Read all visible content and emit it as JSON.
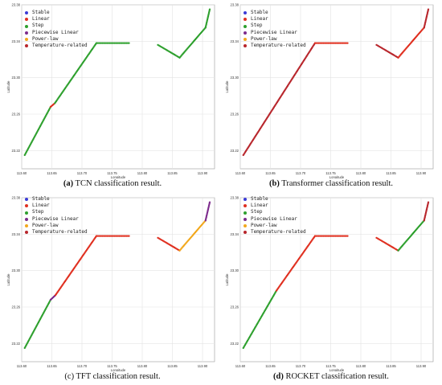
{
  "legend_colors": {
    "Stable": "#3b3bd6",
    "Linear": "#e03020",
    "Step": "#2ea02e",
    "Piecewise Linear": "#7d2b8c",
    "Power-law": "#f2a81d",
    "Temperature-related": "#b8262c"
  },
  "panels": [
    {
      "caption_label": "(a)",
      "caption_text": " TCN classification result.",
      "caption_bold": true
    },
    {
      "caption_label": "(b)",
      "caption_text": " Transformer classification result.",
      "caption_bold": true
    },
    {
      "caption_label": "(c)",
      "caption_text": " TFT classification result.",
      "caption_bold": false
    },
    {
      "caption_label": "(d)",
      "caption_text": " ROCKET classification result.",
      "caption_bold": true
    }
  ],
  "chart_data": [
    {
      "type": "scatter",
      "xlabel": "Longitude",
      "ylabel": "Latitude",
      "xlim": [
        113.6,
        113.92
      ],
      "ylim": [
        23.2,
        23.38
      ],
      "x_ticks": [
        "113.60",
        "113.65",
        "113.70",
        "113.75",
        "113.80",
        "113.85",
        "113.90"
      ],
      "y_ticks": [
        "23.22",
        "23.26",
        "23.30",
        "23.34",
        "23.38"
      ],
      "grid": true,
      "legend_position": "top-left",
      "legend": [
        "Stable",
        "Linear",
        "Step",
        "Piecewise Linear",
        "Power-law",
        "Temperature-related"
      ],
      "segments": [
        {
          "class": "Step",
          "from": [
            113.605,
            23.215
          ],
          "to": [
            113.648,
            23.268
          ]
        },
        {
          "class": "Linear",
          "from": [
            113.648,
            23.268
          ],
          "to": [
            113.655,
            23.272
          ]
        },
        {
          "class": "Step",
          "from": [
            113.655,
            23.272
          ],
          "to": [
            113.724,
            23.338
          ]
        },
        {
          "class": "Step",
          "from": [
            113.724,
            23.338
          ],
          "to": [
            113.778,
            23.338
          ]
        },
        {
          "class": "Step",
          "from": [
            113.826,
            23.336
          ],
          "to": [
            113.862,
            23.322
          ]
        },
        {
          "class": "Step",
          "from": [
            113.862,
            23.322
          ],
          "to": [
            113.905,
            23.355
          ]
        },
        {
          "class": "Step",
          "from": [
            113.905,
            23.355
          ],
          "to": [
            113.912,
            23.375
          ]
        }
      ]
    },
    {
      "type": "scatter",
      "xlabel": "Longitude",
      "ylabel": "Latitude",
      "xlim": [
        113.6,
        113.92
      ],
      "ylim": [
        23.2,
        23.38
      ],
      "x_ticks": [
        "113.60",
        "113.65",
        "113.70",
        "113.75",
        "113.80",
        "113.85",
        "113.90"
      ],
      "y_ticks": [
        "23.22",
        "23.26",
        "23.30",
        "23.34",
        "23.38"
      ],
      "grid": true,
      "legend_position": "top-left",
      "legend": [
        "Stable",
        "Linear",
        "Step",
        "Piecewise Linear",
        "Power-law",
        "Temperature-related"
      ],
      "segments": [
        {
          "class": "Temperature-related",
          "from": [
            113.605,
            23.215
          ],
          "to": [
            113.724,
            23.338
          ]
        },
        {
          "class": "Linear",
          "from": [
            113.724,
            23.338
          ],
          "to": [
            113.778,
            23.338
          ]
        },
        {
          "class": "Temperature-related",
          "from": [
            113.826,
            23.336
          ],
          "to": [
            113.862,
            23.322
          ]
        },
        {
          "class": "Linear",
          "from": [
            113.862,
            23.322
          ],
          "to": [
            113.905,
            23.355
          ]
        },
        {
          "class": "Temperature-related",
          "from": [
            113.905,
            23.355
          ],
          "to": [
            113.912,
            23.375
          ]
        }
      ]
    },
    {
      "type": "scatter",
      "xlabel": "Longitude",
      "ylabel": "Latitude",
      "xlim": [
        113.6,
        113.92
      ],
      "ylim": [
        23.2,
        23.38
      ],
      "x_ticks": [
        "113.60",
        "113.65",
        "113.70",
        "113.75",
        "113.80",
        "113.85",
        "113.90"
      ],
      "y_ticks": [
        "23.22",
        "23.26",
        "23.30",
        "23.34",
        "23.38"
      ],
      "grid": true,
      "legend_position": "top-left",
      "legend": [
        "Stable",
        "Linear",
        "Step",
        "Piecewise Linear",
        "Power-law",
        "Temperature-related"
      ],
      "segments": [
        {
          "class": "Step",
          "from": [
            113.605,
            23.215
          ],
          "to": [
            113.648,
            23.268
          ]
        },
        {
          "class": "Piecewise Linear",
          "from": [
            113.648,
            23.268
          ],
          "to": [
            113.656,
            23.273
          ]
        },
        {
          "class": "Linear",
          "from": [
            113.656,
            23.273
          ],
          "to": [
            113.724,
            23.338
          ]
        },
        {
          "class": "Linear",
          "from": [
            113.724,
            23.338
          ],
          "to": [
            113.778,
            23.338
          ]
        },
        {
          "class": "Linear",
          "from": [
            113.826,
            23.336
          ],
          "to": [
            113.862,
            23.322
          ]
        },
        {
          "class": "Power-law",
          "from": [
            113.862,
            23.322
          ],
          "to": [
            113.905,
            23.355
          ]
        },
        {
          "class": "Piecewise Linear",
          "from": [
            113.905,
            23.355
          ],
          "to": [
            113.912,
            23.375
          ]
        }
      ]
    },
    {
      "type": "scatter",
      "xlabel": "Longitude",
      "ylabel": "Latitude",
      "xlim": [
        113.6,
        113.92
      ],
      "ylim": [
        23.2,
        23.38
      ],
      "x_ticks": [
        "113.60",
        "113.65",
        "113.70",
        "113.75",
        "113.80",
        "113.85",
        "113.90"
      ],
      "y_ticks": [
        "23.22",
        "23.26",
        "23.30",
        "23.34",
        "23.38"
      ],
      "grid": true,
      "legend_position": "top-left",
      "legend": [
        "Stable",
        "Linear",
        "Step",
        "Piecewise Linear",
        "Power-law",
        "Temperature-related"
      ],
      "segments": [
        {
          "class": "Step",
          "from": [
            113.605,
            23.215
          ],
          "to": [
            113.66,
            23.278
          ]
        },
        {
          "class": "Linear",
          "from": [
            113.66,
            23.278
          ],
          "to": [
            113.724,
            23.338
          ]
        },
        {
          "class": "Linear",
          "from": [
            113.724,
            23.338
          ],
          "to": [
            113.778,
            23.338
          ]
        },
        {
          "class": "Linear",
          "from": [
            113.826,
            23.336
          ],
          "to": [
            113.862,
            23.322
          ]
        },
        {
          "class": "Step",
          "from": [
            113.862,
            23.322
          ],
          "to": [
            113.905,
            23.355
          ]
        },
        {
          "class": "Temperature-related",
          "from": [
            113.905,
            23.355
          ],
          "to": [
            113.912,
            23.375
          ]
        }
      ]
    }
  ]
}
